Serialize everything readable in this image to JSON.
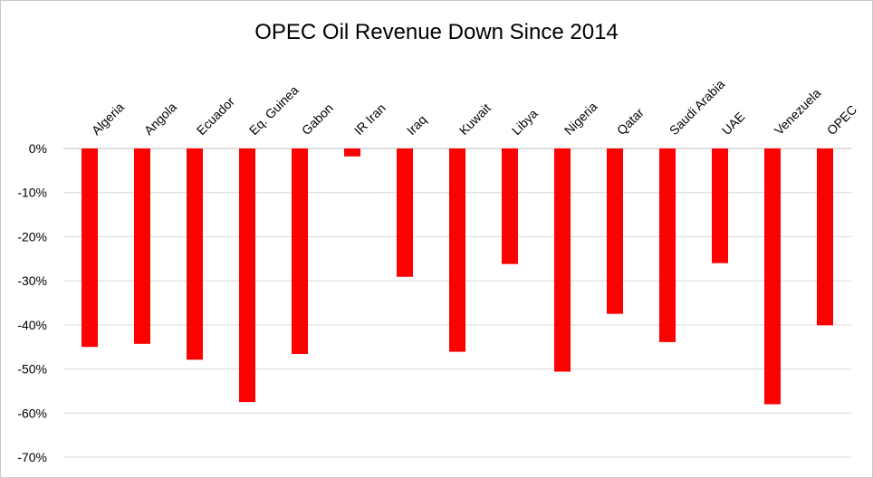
{
  "chart_data": {
    "type": "bar",
    "title": "OPEC Oil Revenue Down Since 2014",
    "categories": [
      "Algeria",
      "Angola",
      "Ecuador",
      "Eq. Guinea",
      "Gabon",
      "IR Iran",
      "Iraq",
      "Kuwait",
      "Libya",
      "Nigeria",
      "Qatar",
      "Saudi Arabia",
      "UAE",
      "Venezuela",
      "OPEC"
    ],
    "values": [
      -45.0,
      -44.3,
      -47.9,
      -57.5,
      -46.6,
      -1.8,
      -29.1,
      -46.1,
      -26.2,
      -50.6,
      -37.5,
      -43.9,
      -26.0,
      -58.0,
      -40.1
    ],
    "ylim": [
      -70,
      0
    ],
    "yticks": [
      "0%",
      "-10%",
      "-20%",
      "-30%",
      "-40%",
      "-50%",
      "-60%",
      "-70%"
    ],
    "ytick_values": [
      0,
      -10,
      -20,
      -30,
      -40,
      -50,
      -60,
      -70
    ],
    "xlabel": "",
    "ylabel": "",
    "grid": true,
    "legend": "none",
    "bar_color": "#ff0000",
    "grid_color": "#d9d9d9"
  }
}
